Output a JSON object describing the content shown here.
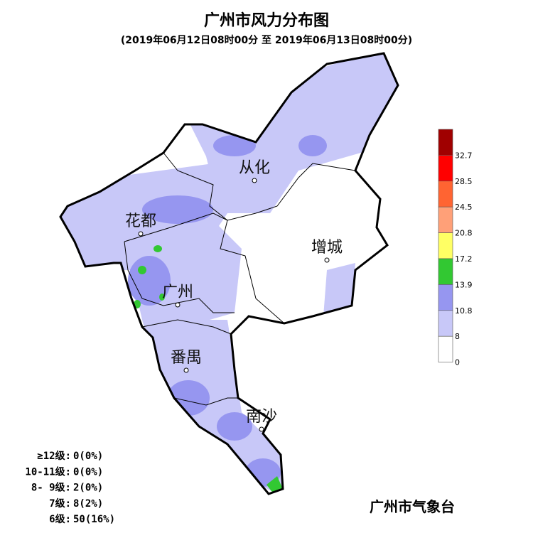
{
  "header": {
    "title": "广州市风力分布图",
    "subtitle": "(2019年06月12日08时00分 至 2019年06月13日08时00分)"
  },
  "cities": [
    {
      "label": "从化"
    },
    {
      "label": "花都"
    },
    {
      "label": "增城"
    },
    {
      "label": "广州"
    },
    {
      "label": "番禺"
    },
    {
      "label": "南沙"
    }
  ],
  "legend": {
    "levels": [
      {
        "color": "#a00000",
        "min": 32.7
      },
      {
        "color": "#ff0000",
        "min": 28.5
      },
      {
        "color": "#ff6432",
        "min": 24.5
      },
      {
        "color": "#ffa078",
        "min": 20.8
      },
      {
        "color": "#ffff64",
        "min": 17.2
      },
      {
        "color": "#32c832",
        "min": 13.9
      },
      {
        "color": "#9696f0",
        "min": 10.8
      },
      {
        "color": "#c8c8f8",
        "min": 8
      },
      {
        "color": "#ffffff",
        "min": 0
      }
    ]
  },
  "stats": [
    {
      "label": "≥12级:",
      "value": "0(0%)"
    },
    {
      "label": "10-11级:",
      "value": "0(0%)"
    },
    {
      "label": "8- 9级:",
      "value": "2(0%)"
    },
    {
      "label": "7级:",
      "value": "8(2%)"
    },
    {
      "label": "6级:",
      "value": "50(16%)"
    }
  ],
  "footer": "广州市气象台"
}
